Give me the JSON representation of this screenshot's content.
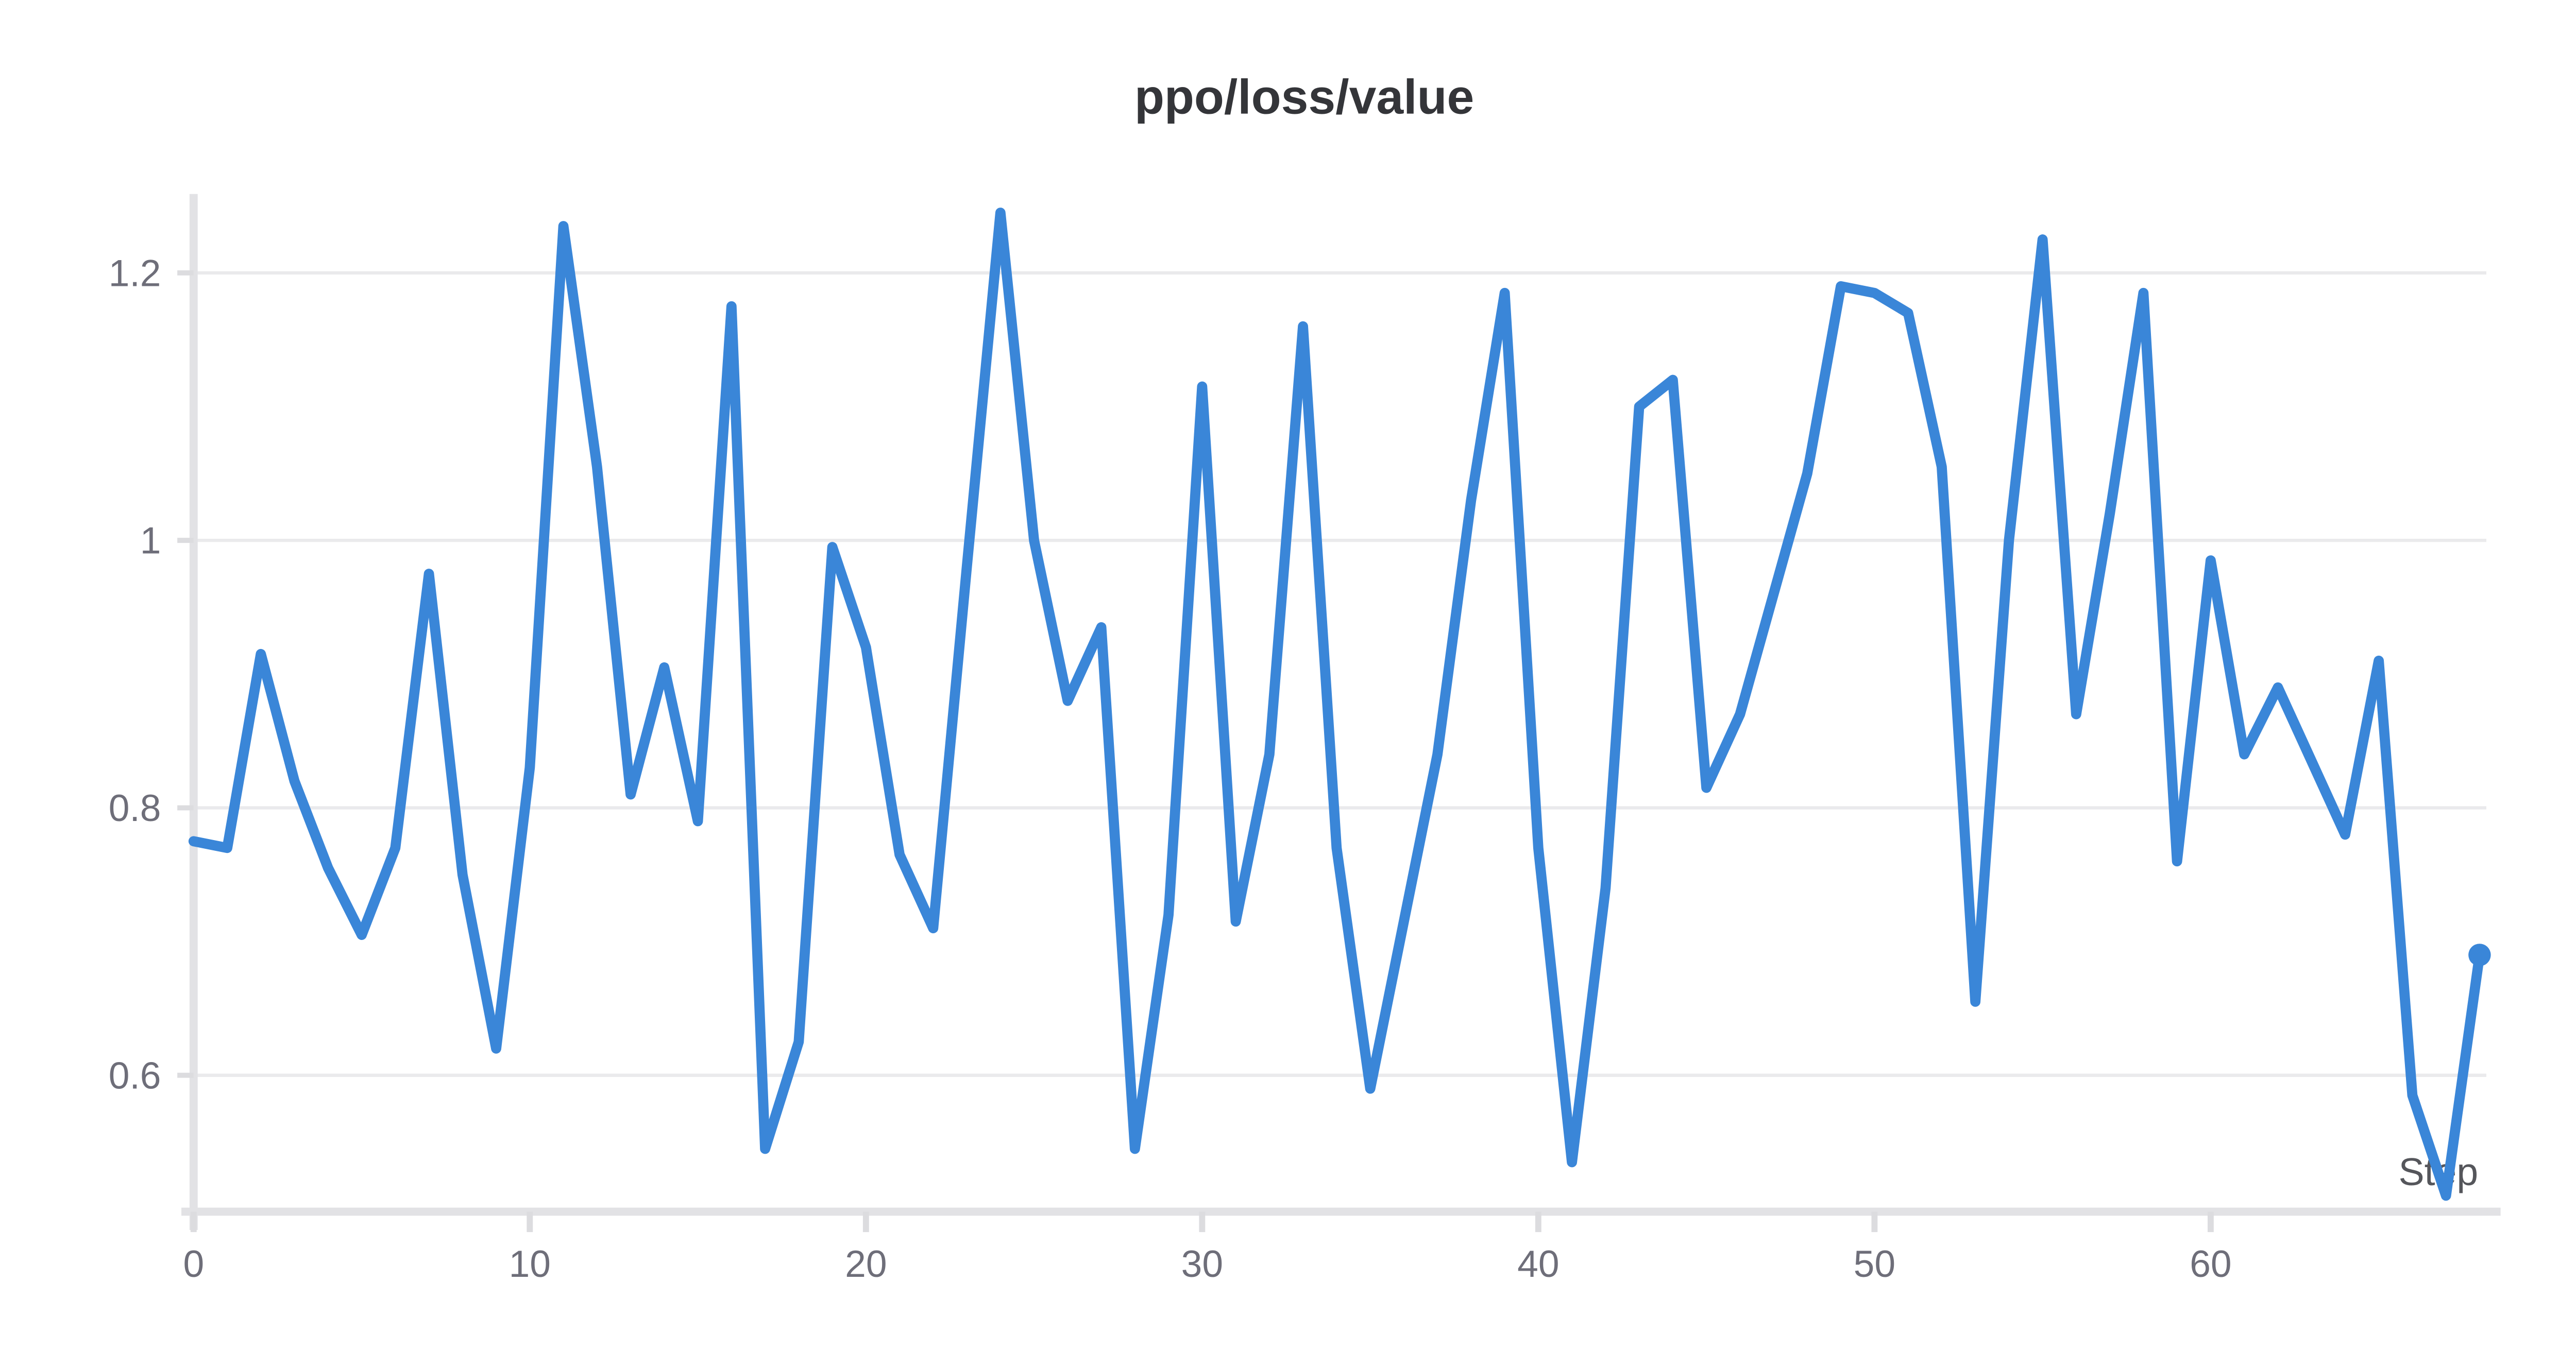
{
  "chart_data": {
    "type": "line",
    "title": "ppo/loss/value",
    "xlabel": "Step",
    "ylabel": "",
    "legend": "none",
    "grid": "horizontal",
    "x": [
      0,
      1,
      2,
      3,
      4,
      5,
      6,
      7,
      8,
      9,
      10,
      11,
      12,
      13,
      14,
      15,
      16,
      17,
      18,
      19,
      20,
      21,
      22,
      23,
      24,
      25,
      26,
      27,
      28,
      29,
      30,
      31,
      32,
      33,
      34,
      35,
      36,
      37,
      38,
      39,
      40,
      41,
      42,
      43,
      44,
      45,
      46,
      47,
      48,
      49,
      50,
      51,
      52,
      53,
      54,
      55,
      56,
      57,
      58,
      59,
      60,
      61,
      62,
      63,
      64,
      65,
      66,
      67,
      68
    ],
    "values": [
      0.775,
      0.77,
      0.915,
      0.82,
      0.755,
      0.705,
      0.77,
      0.975,
      0.75,
      0.62,
      0.83,
      1.235,
      1.055,
      0.81,
      0.905,
      0.79,
      1.175,
      0.545,
      0.625,
      0.995,
      0.92,
      0.765,
      0.71,
      0.98,
      1.245,
      1.0,
      0.88,
      0.935,
      0.545,
      0.72,
      1.115,
      0.715,
      0.84,
      1.16,
      0.77,
      0.59,
      0.715,
      0.84,
      1.03,
      1.185,
      0.77,
      0.535,
      0.74,
      1.1,
      1.12,
      0.815,
      0.87,
      0.96,
      1.05,
      1.19,
      1.185,
      1.17,
      1.055,
      0.655,
      1.0,
      1.225,
      0.87,
      1.02,
      1.185,
      0.76,
      0.985,
      0.84,
      0.89,
      0.835,
      0.78,
      0.91,
      0.585,
      0.51,
      0.69
    ],
    "x_ticks": [
      0,
      10,
      20,
      30,
      40,
      50,
      60
    ],
    "y_ticks": [
      1.2,
      1.0,
      0.8,
      0.6
    ],
    "y_tick_labels": [
      "1.2",
      "1",
      "0.8",
      "0.6"
    ],
    "xlim": [
      0,
      68.2
    ],
    "ylim": [
      0.498,
      1.259
    ],
    "end_marker": true,
    "colors": {
      "line": "#3a86d8",
      "gridline": "#eaeaec",
      "axis_spine": "#e2e2e5",
      "tick_mark": "#dcdcdf",
      "tick_label": "#6e6e79",
      "title": "#343539",
      "step_label": "#55565b",
      "background": "#ffffff"
    }
  }
}
